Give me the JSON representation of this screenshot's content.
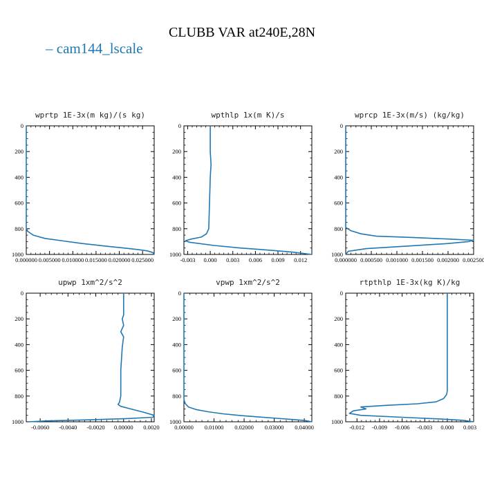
{
  "page": {
    "title": "CLUBB VAR at240E,28N",
    "legend_label": "cam144_lscale",
    "legend_color": "#1f77b4"
  },
  "chart_data": [
    {
      "type": "line",
      "title": "wprtp  1E-3x(m kg)/(s kg)",
      "xlim": [
        0,
        0.0275
      ],
      "ylim": [
        1000,
        0
      ],
      "xticks": [
        0,
        0.005,
        0.01,
        0.015,
        0.02,
        0.025
      ],
      "xtick_labels": [
        "0.000000",
        "0.005000",
        "0.010000",
        "0.015000",
        "0.020000",
        "0.025000"
      ],
      "yticks": [
        0,
        200,
        400,
        600,
        800,
        1000
      ],
      "series": [
        {
          "color": "#1f77b4",
          "x": [
            0,
            0,
            0.0003,
            0.0015,
            0.004,
            0.008,
            0.012,
            0.017,
            0.021,
            0.024,
            0.026,
            0.0272,
            0.0275
          ],
          "y": [
            0,
            795,
            820,
            850,
            875,
            895,
            915,
            935,
            950,
            962,
            972,
            985,
            1000
          ]
        }
      ]
    },
    {
      "type": "line",
      "title": "wpthlp  1x(m K)/s",
      "xlim": [
        -0.0035,
        0.0135
      ],
      "ylim": [
        1000,
        0
      ],
      "xticks": [
        -0.003,
        0,
        0.003,
        0.006,
        0.009,
        0.012
      ],
      "xtick_labels": [
        "-0.003",
        "0.000",
        "0.003",
        "0.006",
        "0.009",
        "0.012"
      ],
      "yticks": [
        0,
        200,
        400,
        600,
        800,
        1000
      ],
      "series": [
        {
          "color": "#1f77b4",
          "x": [
            0,
            0,
            0.0001,
            0,
            -0.0001,
            -0.0002,
            -0.0005,
            -0.0012,
            -0.0025,
            -0.0033,
            -0.0028,
            0.0005,
            0.004,
            0.008,
            0.011,
            0.0135
          ],
          "y": [
            0,
            200,
            300,
            400,
            600,
            800,
            840,
            865,
            880,
            893,
            905,
            930,
            950,
            967,
            982,
            1000
          ]
        }
      ]
    },
    {
      "type": "line",
      "title": "wprcp  1E-3x(m/s) (kg/kg)",
      "xlim": [
        0,
        0.0025
      ],
      "ylim": [
        1000,
        0
      ],
      "xticks": [
        0,
        0.0005,
        0.001,
        0.0015,
        0.002,
        0.0025
      ],
      "xtick_labels": [
        "0.000000",
        "0.000500",
        "0.001000",
        "0.001500",
        "0.002000",
        "0.002500"
      ],
      "yticks": [
        0,
        200,
        400,
        600,
        800,
        1000
      ],
      "series": [
        {
          "color": "#1f77b4",
          "x": [
            0,
            0,
            0.0001,
            0.0003,
            0.0006,
            0.0013,
            0.002,
            0.0025,
            0.0024,
            0.002,
            0.0012,
            0.0004,
            5e-05,
            0
          ],
          "y": [
            0,
            790,
            815,
            840,
            858,
            868,
            880,
            890,
            900,
            915,
            935,
            955,
            975,
            1000
          ]
        }
      ]
    },
    {
      "type": "line",
      "title": "upwp  1xm^2/s^2",
      "xlim": [
        -0.007,
        0.0022
      ],
      "ylim": [
        1000,
        0
      ],
      "xticks": [
        -0.006,
        -0.004,
        -0.002,
        0,
        0.002
      ],
      "xtick_labels": [
        "-0.0060",
        "-0.0040",
        "-0.0020",
        "0.00000",
        "0.0020"
      ],
      "yticks": [
        0,
        200,
        400,
        600,
        800,
        1000
      ],
      "series": [
        {
          "color": "#1f77b4",
          "x": [
            0,
            0,
            -0.0001,
            0,
            -0.0002,
            0,
            -0.0001,
            -0.0002,
            -0.0002,
            -0.0003,
            -0.0004,
            -0.0002,
            0.0005,
            0.0014,
            0.0022,
            0.0021,
            0.0002,
            -0.0025,
            -0.0055,
            -0.0068
          ],
          "y": [
            0,
            170,
            200,
            250,
            300,
            340,
            420,
            600,
            800,
            850,
            865,
            880,
            900,
            925,
            950,
            965,
            975,
            985,
            993,
            1000
          ]
        }
      ]
    },
    {
      "type": "line",
      "title": "vpwp  1xm^2/s^2",
      "xlim": [
        0,
        0.0425
      ],
      "ylim": [
        1000,
        0
      ],
      "xticks": [
        0,
        0.01,
        0.02,
        0.03,
        0.04
      ],
      "xtick_labels": [
        "0.00000",
        "0.01000",
        "0.02000",
        "0.03000",
        "0.04000"
      ],
      "yticks": [
        0,
        200,
        400,
        600,
        800,
        1000
      ],
      "series": [
        {
          "color": "#1f77b4",
          "x": [
            0,
            0,
            0.0003,
            0.0015,
            0.004,
            0.008,
            0.013,
            0.019,
            0.025,
            0.031,
            0.036,
            0.04,
            0.0425
          ],
          "y": [
            0,
            820,
            855,
            885,
            905,
            922,
            938,
            952,
            963,
            973,
            982,
            990,
            1000
          ]
        }
      ]
    },
    {
      "type": "line",
      "title": "rtpthlp  1E-3x(kg K)/kg",
      "xlim": [
        -0.0135,
        0.0035
      ],
      "ylim": [
        1000,
        0
      ],
      "xticks": [
        -0.012,
        -0.009,
        -0.006,
        -0.003,
        0,
        0.003
      ],
      "xtick_labels": [
        "-0.012",
        "-0.009",
        "-0.006",
        "-0.003",
        "0.000",
        "0.003"
      ],
      "yticks": [
        0,
        200,
        400,
        600,
        800,
        1000
      ],
      "series": [
        {
          "color": "#1f77b4",
          "x": [
            0,
            0,
            -0.0001,
            -0.0005,
            -0.0015,
            -0.004,
            -0.008,
            -0.0115,
            -0.0108,
            -0.0125,
            -0.013,
            -0.0115,
            -0.006,
            -0.001,
            0.002,
            0.0035
          ],
          "y": [
            0,
            760,
            790,
            820,
            845,
            860,
            872,
            885,
            900,
            915,
            935,
            950,
            965,
            978,
            988,
            1000
          ]
        }
      ]
    }
  ]
}
